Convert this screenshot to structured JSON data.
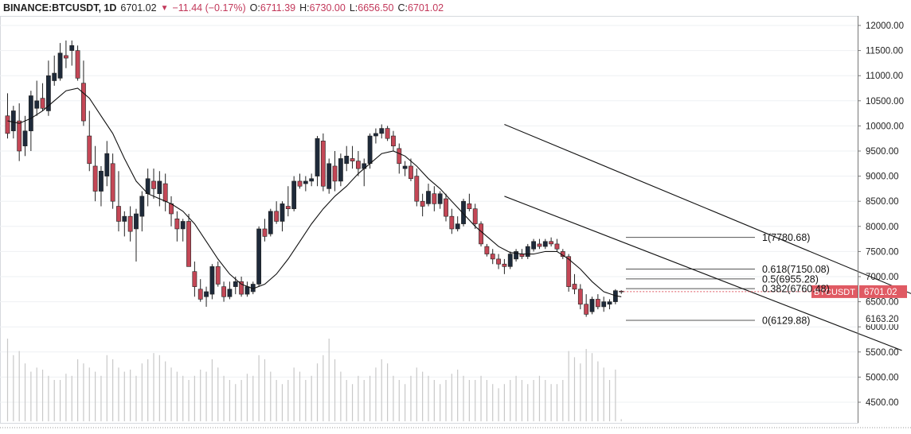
{
  "header": {
    "symbol": "BINANCE:BTCUSDT, 1D",
    "last": "6701.02",
    "change_icon": "down-triangle-icon",
    "change": "−11.44 (−0.17%)",
    "open_label": "O:",
    "open": "6711.39",
    "high_label": "H:",
    "high": "6730.00",
    "low_label": "L:",
    "low": "6656.50",
    "close_label": "C:",
    "close": "6701.02"
  },
  "colors": {
    "up": "#1e2a3a",
    "down": "#c44756",
    "price_tag": "#e05a63",
    "grid": "#eef0f3",
    "volume": "#c8c8c8"
  },
  "chart_data": {
    "type": "candlestick",
    "title": "BINANCE:BTCUSDT, 1D",
    "ylim": [
      4100,
      12300
    ],
    "yticks": [
      "12000.00",
      "11500.00",
      "11000.00",
      "10500.00",
      "10000.00",
      "9500.00",
      "9000.00",
      "8500.00",
      "8000.00",
      "7500.00",
      "7000.00",
      "6500.00",
      "6000.00",
      "5500.00",
      "5000.00",
      "4500.00"
    ],
    "current_price": {
      "label": "BTCUSDT",
      "value": "6701.02"
    },
    "marker_price": {
      "value": "6163.20"
    },
    "fib_levels": [
      {
        "label": "1(7780.68)",
        "value": 7780.68
      },
      {
        "label": "0.618(7150.08)",
        "value": 7150.08
      },
      {
        "label": "0.5(6955.28)",
        "value": 6955.28
      },
      {
        "label": "0.382(6760.48)",
        "value": 6760.48
      },
      {
        "label": "0(6129.88)",
        "value": 6129.88
      }
    ],
    "channel_lines": [
      {
        "from": [
          85,
          10030
        ],
        "to": [
          160,
          6400
        ]
      },
      {
        "from": [
          85,
          8600
        ],
        "to": [
          153,
          5530
        ]
      }
    ],
    "candles": [
      [
        0,
        10200,
        10650,
        9750,
        9850
      ],
      [
        1,
        9900,
        10400,
        9750,
        10300
      ],
      [
        2,
        10100,
        10450,
        9300,
        9500
      ],
      [
        3,
        9600,
        10200,
        9400,
        9900
      ],
      [
        4,
        9900,
        10700,
        9500,
        10600
      ],
      [
        5,
        10350,
        10900,
        10200,
        10500
      ],
      [
        6,
        10550,
        10850,
        10300,
        10350
      ],
      [
        7,
        10300,
        11300,
        10200,
        11000
      ],
      [
        8,
        10900,
        11400,
        10800,
        11050
      ],
      [
        9,
        10950,
        11650,
        10900,
        11450
      ],
      [
        10,
        11400,
        11700,
        11150,
        11350
      ],
      [
        11,
        11500,
        11700,
        11200,
        11600
      ],
      [
        12,
        11500,
        11600,
        10900,
        10950
      ],
      [
        13,
        10850,
        11300,
        10000,
        10100
      ],
      [
        14,
        9800,
        10300,
        9100,
        9250
      ],
      [
        15,
        9200,
        9600,
        8500,
        8700
      ],
      [
        16,
        8700,
        9200,
        8400,
        9100
      ],
      [
        17,
        9000,
        9700,
        8800,
        9450
      ],
      [
        18,
        9250,
        9450,
        8350,
        8500
      ],
      [
        19,
        8400,
        9100,
        7900,
        8100
      ],
      [
        20,
        8100,
        8300,
        7800,
        8200
      ],
      [
        21,
        8200,
        8400,
        7700,
        7900
      ],
      [
        22,
        7950,
        8350,
        7300,
        8250
      ],
      [
        23,
        8200,
        8700,
        7900,
        8600
      ],
      [
        24,
        8650,
        9150,
        8400,
        8950
      ],
      [
        25,
        8900,
        9150,
        8550,
        8750
      ],
      [
        26,
        8650,
        9100,
        8400,
        8900
      ],
      [
        27,
        8850,
        9050,
        8300,
        8500
      ],
      [
        28,
        8450,
        8600,
        8000,
        8250
      ],
      [
        29,
        8150,
        8300,
        7700,
        7950
      ],
      [
        30,
        7950,
        8150,
        7700,
        8100
      ],
      [
        31,
        8100,
        8250,
        7200,
        7200
      ],
      [
        32,
        7100,
        7300,
        6600,
        6800
      ],
      [
        33,
        6750,
        6950,
        6500,
        6550
      ],
      [
        34,
        6600,
        6800,
        6400,
        6700
      ],
      [
        35,
        6650,
        7250,
        6550,
        7200
      ],
      [
        36,
        7200,
        7300,
        6800,
        6850
      ],
      [
        37,
        6800,
        6900,
        6500,
        6600
      ],
      [
        38,
        6600,
        6900,
        6550,
        6750
      ],
      [
        39,
        6800,
        7000,
        6650,
        6900
      ],
      [
        40,
        6900,
        7000,
        6600,
        6650
      ],
      [
        41,
        6650,
        6900,
        6600,
        6800
      ],
      [
        42,
        6700,
        6900,
        6650,
        6850
      ],
      [
        43,
        6850,
        8000,
        6800,
        7950
      ],
      [
        44,
        7950,
        8150,
        7700,
        7800
      ],
      [
        45,
        7850,
        8350,
        7800,
        8300
      ],
      [
        46,
        8300,
        8500,
        8050,
        8100
      ],
      [
        47,
        8100,
        8500,
        7900,
        8450
      ],
      [
        48,
        8400,
        8800,
        8200,
        8350
      ],
      [
        49,
        8350,
        9000,
        8300,
        8900
      ],
      [
        50,
        8900,
        9050,
        8750,
        8800
      ],
      [
        51,
        8850,
        9000,
        8700,
        8900
      ],
      [
        52,
        8900,
        9050,
        8800,
        8950
      ],
      [
        53,
        9000,
        9800,
        8800,
        9750
      ],
      [
        54,
        9700,
        9850,
        8700,
        8800
      ],
      [
        55,
        8750,
        9350,
        8650,
        9250
      ],
      [
        56,
        9200,
        9500,
        8700,
        8900
      ],
      [
        57,
        8900,
        9450,
        8800,
        9350
      ],
      [
        58,
        9250,
        9600,
        9100,
        9400
      ],
      [
        59,
        9350,
        9600,
        9150,
        9300
      ],
      [
        60,
        9300,
        9500,
        9000,
        9150
      ],
      [
        61,
        9150,
        9350,
        8800,
        9250
      ],
      [
        62,
        9250,
        9850,
        9150,
        9800
      ],
      [
        63,
        9800,
        9950,
        9650,
        9850
      ],
      [
        64,
        9850,
        10030,
        9750,
        9950
      ],
      [
        65,
        9950,
        10000,
        9700,
        9750
      ],
      [
        66,
        9800,
        9900,
        9500,
        9600
      ],
      [
        67,
        9550,
        9650,
        9050,
        9250
      ],
      [
        68,
        9150,
        9300,
        9000,
        9200
      ],
      [
        69,
        9200,
        9350,
        8900,
        8950
      ],
      [
        70,
        9000,
        9150,
        8400,
        8500
      ],
      [
        71,
        8500,
        8650,
        8200,
        8400
      ],
      [
        72,
        8450,
        8850,
        8400,
        8700
      ],
      [
        73,
        8650,
        8800,
        8300,
        8450
      ],
      [
        74,
        8450,
        8700,
        8350,
        8650
      ],
      [
        75,
        8550,
        8650,
        8100,
        8200
      ],
      [
        76,
        8200,
        8350,
        7850,
        7950
      ],
      [
        77,
        7950,
        8200,
        7900,
        8050
      ],
      [
        78,
        8050,
        8550,
        8000,
        8500
      ],
      [
        79,
        8450,
        8650,
        8300,
        8350
      ],
      [
        80,
        8350,
        8450,
        7950,
        8050
      ],
      [
        81,
        8050,
        8100,
        7600,
        7650
      ],
      [
        82,
        7600,
        7650,
        7400,
        7450
      ],
      [
        83,
        7450,
        7550,
        7250,
        7350
      ],
      [
        84,
        7350,
        7450,
        7150,
        7250
      ],
      [
        85,
        7250,
        7350,
        7050,
        7200
      ],
      [
        86,
        7200,
        7500,
        7150,
        7450
      ],
      [
        87,
        7350,
        7550,
        7300,
        7500
      ],
      [
        88,
        7450,
        7550,
        7350,
        7400
      ],
      [
        89,
        7400,
        7650,
        7350,
        7600
      ],
      [
        90,
        7550,
        7750,
        7500,
        7700
      ],
      [
        91,
        7650,
        7750,
        7550,
        7600
      ],
      [
        92,
        7600,
        7750,
        7550,
        7700
      ],
      [
        93,
        7700,
        7780,
        7600,
        7650
      ],
      [
        94,
        7650,
        7750,
        7500,
        7550
      ],
      [
        95,
        7500,
        7550,
        7350,
        7400
      ],
      [
        96,
        7400,
        7450,
        6700,
        6800
      ],
      [
        97,
        6850,
        7050,
        6650,
        6750
      ],
      [
        98,
        6750,
        6850,
        6350,
        6450
      ],
      [
        99,
        6450,
        6650,
        6200,
        6250
      ],
      [
        100,
        6300,
        6600,
        6250,
        6550
      ],
      [
        101,
        6550,
        6650,
        6350,
        6400
      ],
      [
        102,
        6400,
        6600,
        6300,
        6500
      ],
      [
        103,
        6450,
        6550,
        6350,
        6500
      ],
      [
        104,
        6500,
        6750,
        6450,
        6720
      ],
      [
        105,
        6711.39,
        6730,
        6656.5,
        6701.02
      ]
    ],
    "volume": [
      40,
      32,
      34,
      28,
      24,
      26,
      25,
      22,
      20,
      20,
      23,
      22,
      30,
      28,
      26,
      24,
      22,
      32,
      30,
      26,
      24,
      25,
      22,
      28,
      30,
      33,
      32,
      29,
      26,
      24,
      22,
      20,
      22,
      25,
      24,
      30,
      26,
      22,
      20,
      18,
      20,
      23,
      22,
      32,
      30,
      24,
      20,
      18,
      20,
      26,
      24,
      20,
      22,
      28,
      32,
      40,
      30,
      24,
      20,
      18,
      22,
      20,
      22,
      26,
      30,
      28,
      22,
      20,
      18,
      22,
      26,
      24,
      22,
      20,
      18,
      20,
      23,
      25,
      22,
      20,
      20,
      22,
      20,
      18,
      16,
      18,
      20,
      22,
      20,
      18,
      20,
      22,
      20,
      18,
      18,
      20,
      34,
      31,
      28,
      35,
      33,
      29,
      26,
      20,
      25,
      1
    ],
    "sma": [
      [
        0,
        10100
      ],
      [
        2,
        10050
      ],
      [
        4,
        10150
      ],
      [
        6,
        10300
      ],
      [
        8,
        10500
      ],
      [
        10,
        10700
      ],
      [
        12,
        10750
      ],
      [
        14,
        10550
      ],
      [
        16,
        10200
      ],
      [
        18,
        9850
      ],
      [
        20,
        9350
      ],
      [
        22,
        8900
      ],
      [
        24,
        8650
      ],
      [
        26,
        8550
      ],
      [
        28,
        8450
      ],
      [
        30,
        8300
      ],
      [
        32,
        8050
      ],
      [
        34,
        7700
      ],
      [
        36,
        7350
      ],
      [
        38,
        7050
      ],
      [
        40,
        6850
      ],
      [
        42,
        6760
      ],
      [
        44,
        6850
      ],
      [
        46,
        7050
      ],
      [
        48,
        7350
      ],
      [
        50,
        7700
      ],
      [
        52,
        8050
      ],
      [
        54,
        8350
      ],
      [
        56,
        8600
      ],
      [
        58,
        8800
      ],
      [
        60,
        9050
      ],
      [
        62,
        9250
      ],
      [
        64,
        9450
      ],
      [
        66,
        9500
      ],
      [
        68,
        9400
      ],
      [
        70,
        9200
      ],
      [
        72,
        8950
      ],
      [
        74,
        8750
      ],
      [
        76,
        8500
      ],
      [
        78,
        8250
      ],
      [
        80,
        8000
      ],
      [
        82,
        7800
      ],
      [
        84,
        7600
      ],
      [
        86,
        7480
      ],
      [
        88,
        7450
      ],
      [
        90,
        7450
      ],
      [
        92,
        7500
      ],
      [
        94,
        7500
      ],
      [
        96,
        7350
      ],
      [
        98,
        7150
      ],
      [
        100,
        6900
      ],
      [
        102,
        6700
      ],
      [
        104,
        6620
      ],
      [
        105,
        6600
      ]
    ]
  }
}
